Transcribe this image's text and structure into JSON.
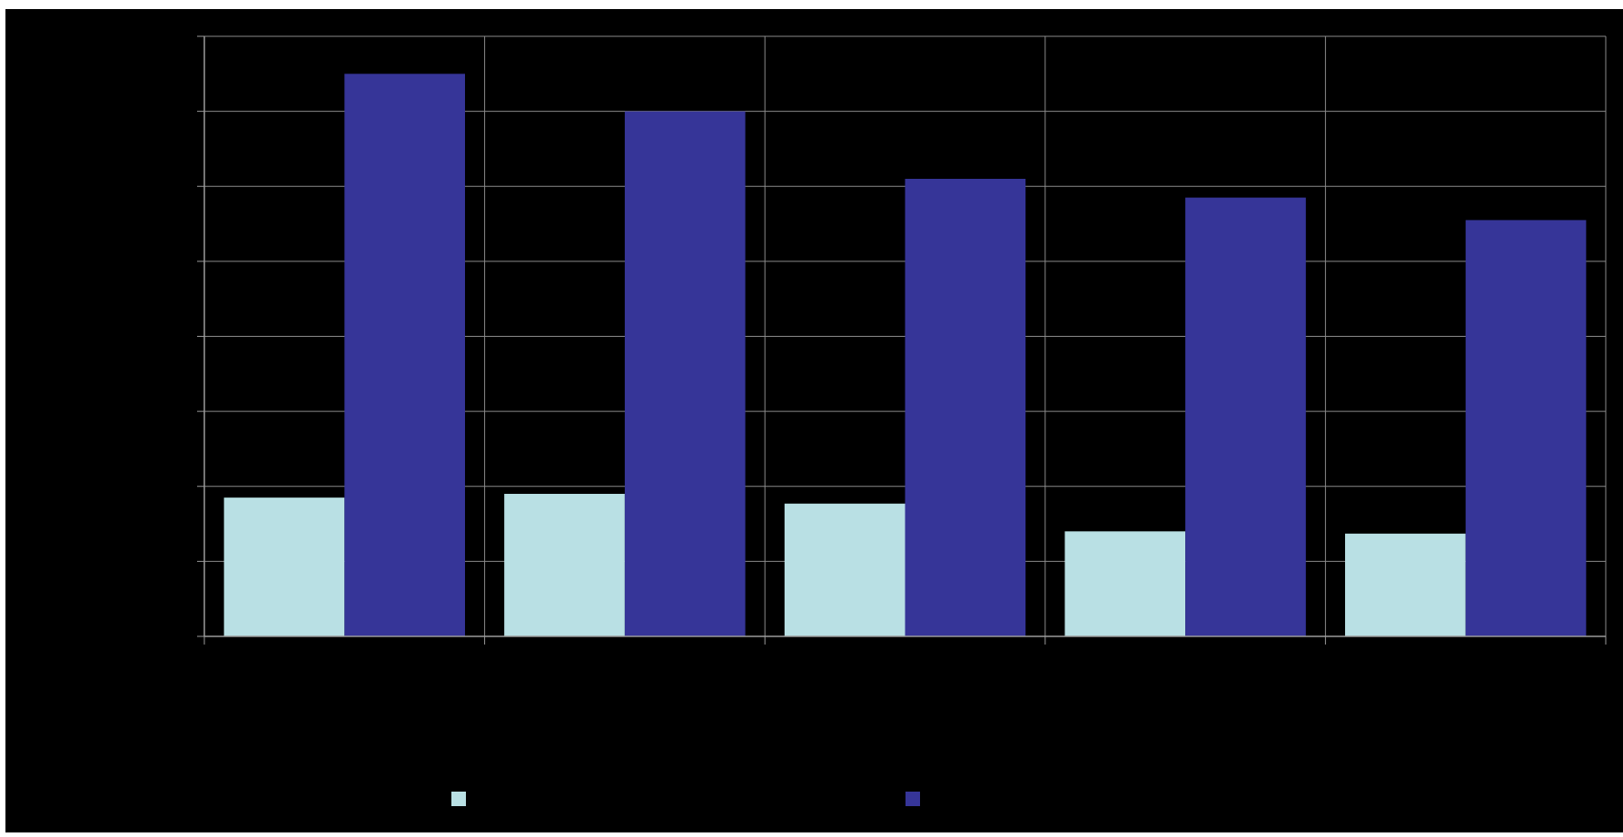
{
  "chart_data": {
    "type": "bar",
    "title": "",
    "xlabel": "",
    "ylabel": "",
    "categories": [
      "",
      "",
      "",
      "",
      ""
    ],
    "series": [
      {
        "color": "#B9E0E4",
        "values": [
          18.5,
          19.0,
          17.7,
          14.0,
          13.7
        ]
      },
      {
        "color": "#363598",
        "values": [
          75.0,
          70.0,
          61.0,
          58.5,
          55.5
        ]
      }
    ],
    "ylim": [
      0,
      80
    ],
    "ytick_step": 10,
    "grid": true,
    "legend_position": "bottom",
    "colors": {
      "background": "#000000",
      "frame": "#ffffff",
      "grid": "#8a8a8a",
      "axis": "#9a9a9a"
    }
  }
}
